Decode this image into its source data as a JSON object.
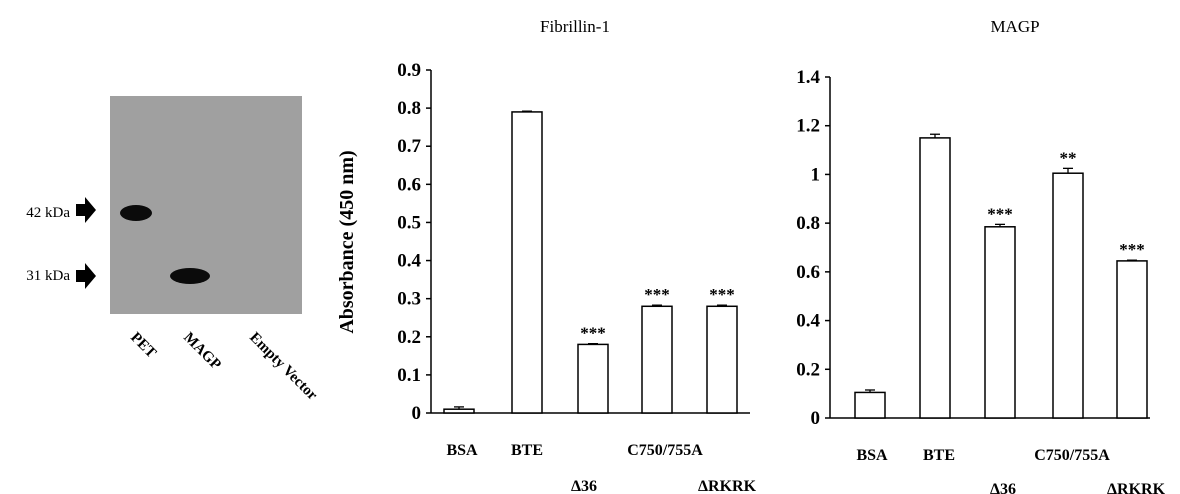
{
  "blot": {
    "markers": [
      "42 kDa",
      "31 kDa"
    ],
    "lanes": [
      "PET",
      "MAGP",
      "Empty Vector"
    ]
  },
  "chart_data": [
    {
      "type": "bar",
      "title": "Fibrillin-1",
      "ylabel": "Absorbance (450 nm)",
      "ylim": [
        0,
        0.9
      ],
      "yticks": [
        "0",
        "0.1",
        "0.2",
        "0.3",
        "0.4",
        "0.5",
        "0.6",
        "0.7",
        "0.8",
        "0.9"
      ],
      "categories": [
        "BSA",
        "BTE",
        "Δ36",
        "C750/755A",
        "ΔRKRK"
      ],
      "values": [
        0.01,
        0.79,
        0.18,
        0.28,
        0.28
      ],
      "errors": [
        0.006,
        0.002,
        0.002,
        0.003,
        0.003
      ],
      "significance": [
        "",
        "",
        "***",
        "***",
        "***"
      ],
      "grid": false
    },
    {
      "type": "bar",
      "title": "MAGP",
      "ylabel": "",
      "ylim": [
        0,
        1.4
      ],
      "yticks": [
        "0",
        "0.2",
        "0.4",
        "0.6",
        "0.8",
        "1",
        "1.2",
        "1.4"
      ],
      "categories": [
        "BSA",
        "BTE",
        "Δ36",
        "C750/755A",
        "ΔRKRK"
      ],
      "values": [
        0.105,
        1.15,
        0.785,
        1.005,
        0.645
      ],
      "errors": [
        0.01,
        0.015,
        0.01,
        0.02,
        0.003
      ],
      "significance": [
        "",
        "",
        "***",
        "**",
        "***"
      ],
      "grid": false
    }
  ]
}
